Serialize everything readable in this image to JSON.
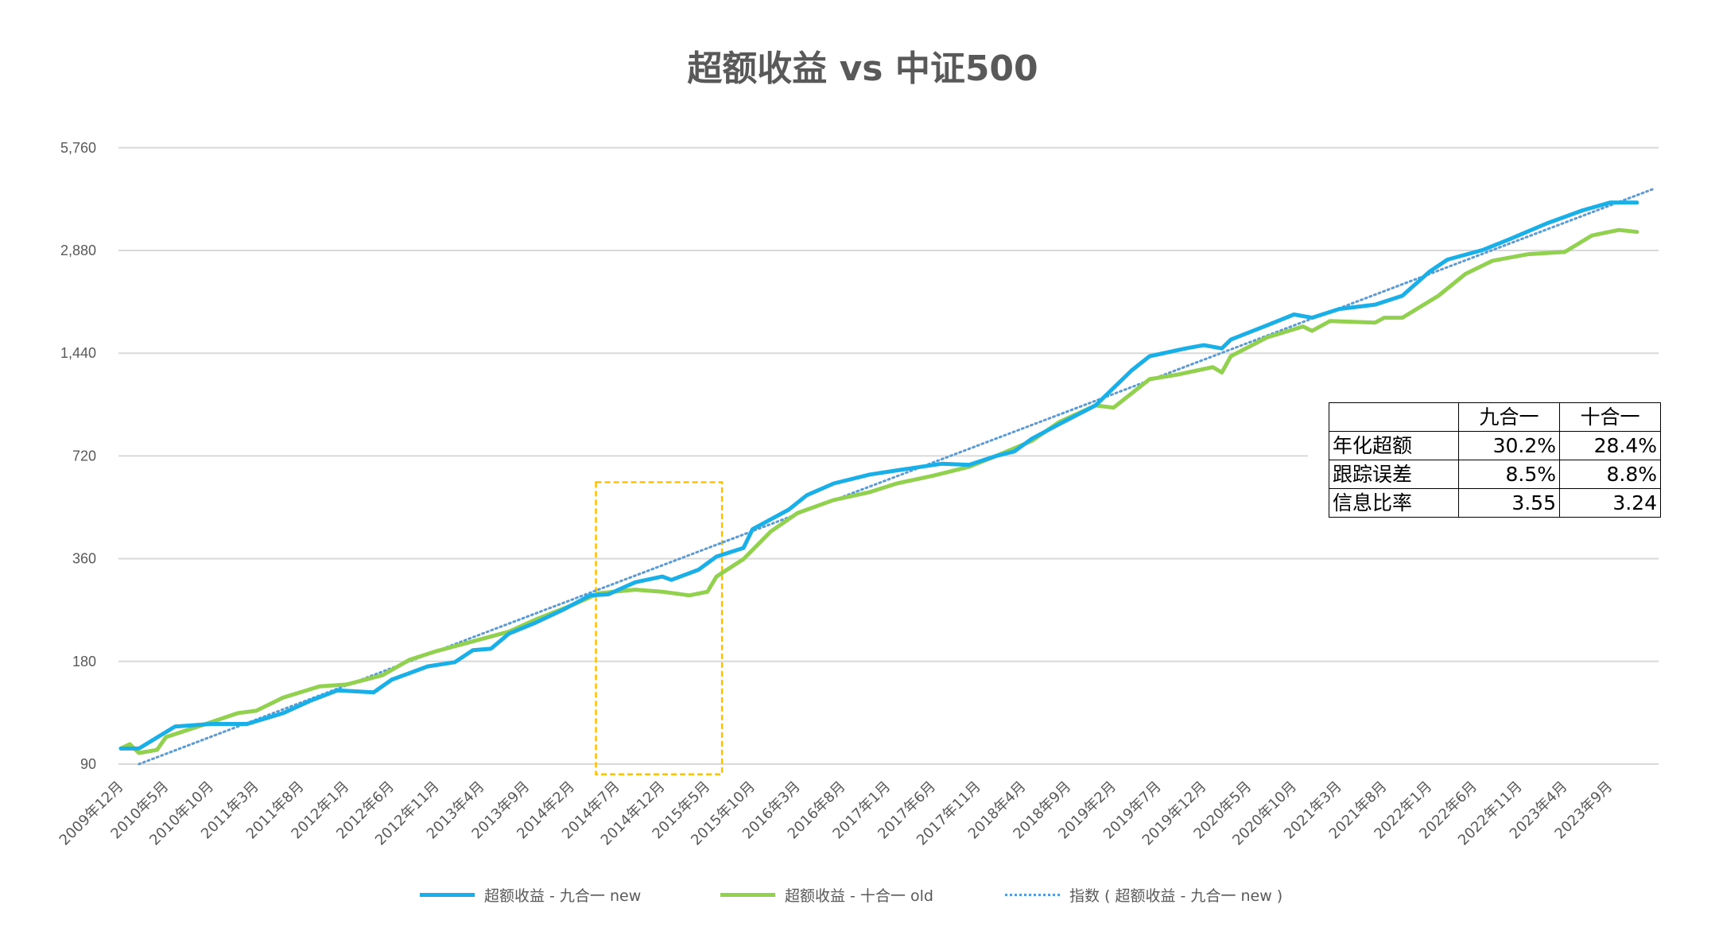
{
  "chart_data": {
    "type": "line",
    "title": "超额收益 vs 中证500",
    "xlabel": "",
    "ylabel": "",
    "yscale": "log2",
    "ylim": [
      90,
      5760
    ],
    "yticks": [
      90,
      180,
      360,
      720,
      1440,
      2880,
      5760
    ],
    "ytick_labels": [
      "90",
      "180",
      "360",
      "720",
      "1,440",
      "2,880",
      "5,760"
    ],
    "x_start": "2009-12",
    "x_end": "2023-12",
    "xtick_labels": [
      "2009年12月",
      "2010年5月",
      "2010年10月",
      "2011年3月",
      "2011年8月",
      "2012年1月",
      "2012年6月",
      "2012年11月",
      "2013年4月",
      "2013年9月",
      "2014年2月",
      "2014年7月",
      "2014年12月",
      "2015年5月",
      "2015年10月",
      "2016年3月",
      "2016年8月",
      "2017年1月",
      "2017年6月",
      "2017年11月",
      "2018年4月",
      "2018年9月",
      "2019年2月",
      "2019年7月",
      "2019年12月",
      "2020年5月",
      "2020年10月",
      "2021年3月",
      "2021年8月",
      "2022年1月",
      "2022年6月",
      "2022年11月",
      "2023年4月",
      "2023年9月"
    ],
    "grid": true,
    "legend_position": "bottom",
    "series": [
      {
        "name": "超额收益 - 九合一 new",
        "color": "#1AAFE6",
        "points": [
          [
            "2009-12",
            100
          ],
          [
            "2010-02",
            100
          ],
          [
            "2010-06",
            116
          ],
          [
            "2010-10",
            118
          ],
          [
            "2011-02",
            118
          ],
          [
            "2011-06",
            127
          ],
          [
            "2011-09",
            138
          ],
          [
            "2011-12",
            148
          ],
          [
            "2012-04",
            146
          ],
          [
            "2012-06",
            159
          ],
          [
            "2012-10",
            174
          ],
          [
            "2013-01",
            179
          ],
          [
            "2013-03",
            194
          ],
          [
            "2013-05",
            196
          ],
          [
            "2013-07",
            217
          ],
          [
            "2013-10",
            234
          ],
          [
            "2014-01",
            255
          ],
          [
            "2014-04",
            281
          ],
          [
            "2014-06",
            283
          ],
          [
            "2014-09",
            307
          ],
          [
            "2014-12",
            319
          ],
          [
            "2015-01",
            312
          ],
          [
            "2015-04",
            334
          ],
          [
            "2015-06",
            365
          ],
          [
            "2015-09",
            387
          ],
          [
            "2015-10",
            439
          ],
          [
            "2016-02",
            501
          ],
          [
            "2016-04",
            552
          ],
          [
            "2016-07",
            598
          ],
          [
            "2016-11",
            635
          ],
          [
            "2017-03",
            659
          ],
          [
            "2017-07",
            683
          ],
          [
            "2017-10",
            678
          ],
          [
            "2018-01",
            720
          ],
          [
            "2018-03",
            742
          ],
          [
            "2018-05",
            810
          ],
          [
            "2018-08",
            893
          ],
          [
            "2018-12",
            1012
          ],
          [
            "2019-02",
            1139
          ],
          [
            "2019-04",
            1282
          ],
          [
            "2019-06",
            1411
          ],
          [
            "2019-10",
            1487
          ],
          [
            "2019-12",
            1520
          ],
          [
            "2020-02",
            1487
          ],
          [
            "2020-03",
            1578
          ],
          [
            "2020-07",
            1737
          ],
          [
            "2020-10",
            1870
          ],
          [
            "2020-12",
            1829
          ],
          [
            "2021-03",
            1940
          ],
          [
            "2021-07",
            1999
          ],
          [
            "2021-10",
            2121
          ],
          [
            "2022-01",
            2496
          ],
          [
            "2022-03",
            2707
          ],
          [
            "2022-07",
            2894
          ],
          [
            "2022-10",
            3117
          ],
          [
            "2023-02",
            3456
          ],
          [
            "2023-06",
            3777
          ],
          [
            "2023-09",
            3978
          ],
          [
            "2023-12",
            3978
          ]
        ]
      },
      {
        "name": "超额收益 - 十合一 old",
        "color": "#92D050",
        "points": [
          [
            "2009-12",
            100
          ],
          [
            "2010-01",
            103
          ],
          [
            "2010-02",
            97
          ],
          [
            "2010-04",
            99
          ],
          [
            "2010-05",
            108
          ],
          [
            "2010-09",
            117
          ],
          [
            "2011-01",
            127
          ],
          [
            "2011-03",
            129
          ],
          [
            "2011-06",
            141
          ],
          [
            "2011-10",
            152
          ],
          [
            "2012-01",
            154
          ],
          [
            "2012-05",
            164
          ],
          [
            "2012-08",
            182
          ],
          [
            "2012-11",
            193
          ],
          [
            "2013-03",
            206
          ],
          [
            "2013-07",
            220
          ],
          [
            "2013-10",
            239
          ],
          [
            "2014-02",
            263
          ],
          [
            "2014-05",
            285
          ],
          [
            "2014-09",
            292
          ],
          [
            "2014-12",
            288
          ],
          [
            "2015-03",
            281
          ],
          [
            "2015-05",
            288
          ],
          [
            "2015-06",
            319
          ],
          [
            "2015-09",
            359
          ],
          [
            "2015-12",
            432
          ],
          [
            "2016-03",
            490
          ],
          [
            "2016-07",
            535
          ],
          [
            "2016-11",
            564
          ],
          [
            "2017-02",
            598
          ],
          [
            "2017-06",
            630
          ],
          [
            "2017-10",
            669
          ],
          [
            "2018-01",
            720
          ],
          [
            "2018-05",
            798
          ],
          [
            "2018-08",
            906
          ],
          [
            "2018-12",
            1012
          ],
          [
            "2019-02",
            997
          ],
          [
            "2019-06",
            1208
          ],
          [
            "2019-09",
            1245
          ],
          [
            "2020-01",
            1311
          ],
          [
            "2020-02",
            1264
          ],
          [
            "2020-03",
            1411
          ],
          [
            "2020-07",
            1601
          ],
          [
            "2020-11",
            1724
          ],
          [
            "2020-12",
            1674
          ],
          [
            "2021-02",
            1789
          ],
          [
            "2021-07",
            1770
          ],
          [
            "2021-08",
            1829
          ],
          [
            "2021-10",
            1829
          ],
          [
            "2022-02",
            2121
          ],
          [
            "2022-05",
            2459
          ],
          [
            "2022-08",
            2687
          ],
          [
            "2022-12",
            2810
          ],
          [
            "2023-04",
            2851
          ],
          [
            "2023-07",
            3186
          ],
          [
            "2023-10",
            3307
          ],
          [
            "2023-12",
            3263
          ]
        ]
      }
    ],
    "trendline": {
      "name": "指数 ( 超额收益 - 九合一 new )",
      "type": "exponential",
      "color": "#5B9BD5",
      "start": [
        "2010-02",
        90
      ],
      "end": [
        "2024-02",
        4380
      ]
    },
    "highlight_box": {
      "color": "#FFC000",
      "x": [
        "2014-05",
        "2015-06"
      ],
      "y": [
        84,
        603
      ]
    }
  },
  "stats_table": {
    "headers": [
      "",
      "九合一",
      "十合一"
    ],
    "rows": [
      {
        "label": "年化超额",
        "v1": "30.2%",
        "v2": "28.4%"
      },
      {
        "label": "跟踪误差",
        "v1": "8.5%",
        "v2": "8.8%"
      },
      {
        "label": "信息比率",
        "v1": "3.55",
        "v2": "3.24"
      }
    ]
  }
}
